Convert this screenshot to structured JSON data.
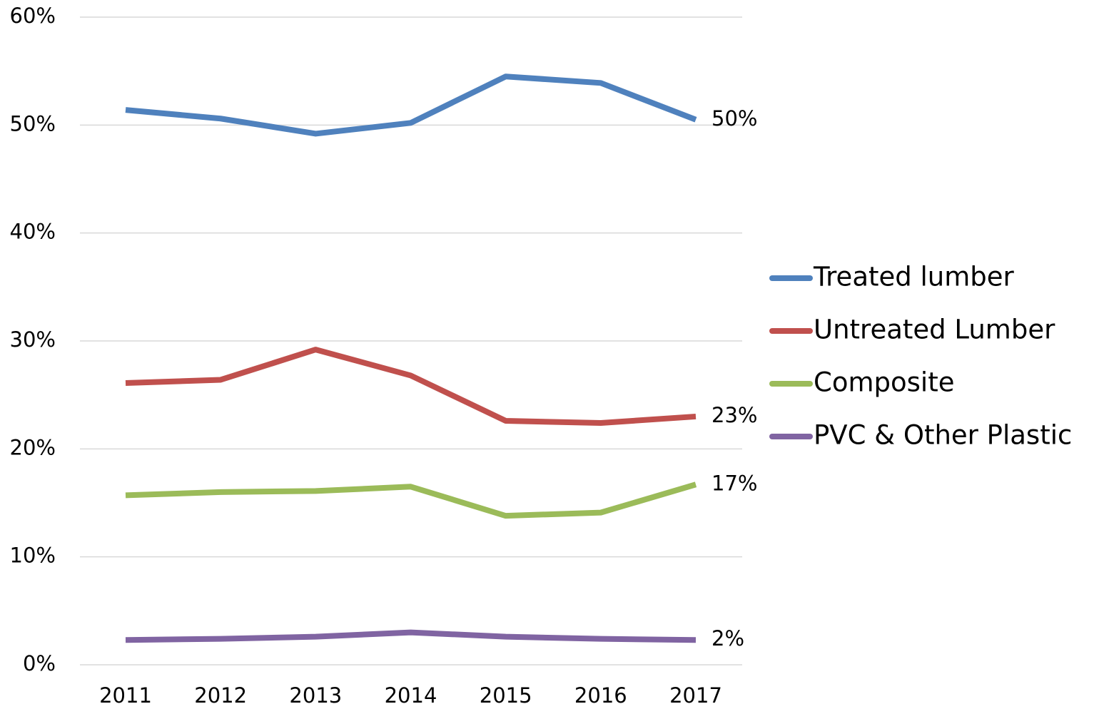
{
  "chart_data": {
    "type": "line",
    "categories": [
      "2011",
      "2012",
      "2013",
      "2014",
      "2015",
      "2016",
      "2017"
    ],
    "series": [
      {
        "name": "Treated lumber",
        "color": "#4f81bd",
        "values": [
          51.4,
          50.6,
          49.2,
          50.2,
          54.5,
          53.9,
          50.5
        ],
        "value_labels": [
          null,
          null,
          null,
          null,
          null,
          null,
          "50%"
        ]
      },
      {
        "name": "Untreated Lumber",
        "color": "#c0504d",
        "values": [
          26.1,
          26.4,
          29.2,
          26.8,
          22.6,
          22.4,
          23.0
        ],
        "value_labels": [
          null,
          null,
          null,
          null,
          null,
          null,
          "23%"
        ]
      },
      {
        "name": "Composite",
        "color": "#9bbb59",
        "values": [
          15.7,
          16.0,
          16.1,
          16.5,
          13.8,
          14.1,
          16.7
        ],
        "value_labels": [
          null,
          null,
          null,
          null,
          null,
          null,
          "17%"
        ]
      },
      {
        "name": "PVC & Other Plastic",
        "color": "#8064a2",
        "values": [
          2.3,
          2.4,
          2.6,
          3.0,
          2.6,
          2.4,
          2.3
        ],
        "value_labels": [
          null,
          null,
          null,
          null,
          null,
          null,
          "2%"
        ]
      }
    ],
    "ylim": [
      0,
      60
    ],
    "yticks": [
      {
        "value": 0,
        "label": "0%"
      },
      {
        "value": 10,
        "label": "10%"
      },
      {
        "value": 20,
        "label": "20%"
      },
      {
        "value": 30,
        "label": "30%"
      },
      {
        "value": 40,
        "label": "40%"
      },
      {
        "value": 50,
        "label": "50%"
      },
      {
        "value": 60,
        "label": "60%"
      }
    ],
    "grid": true,
    "legend": "right"
  }
}
